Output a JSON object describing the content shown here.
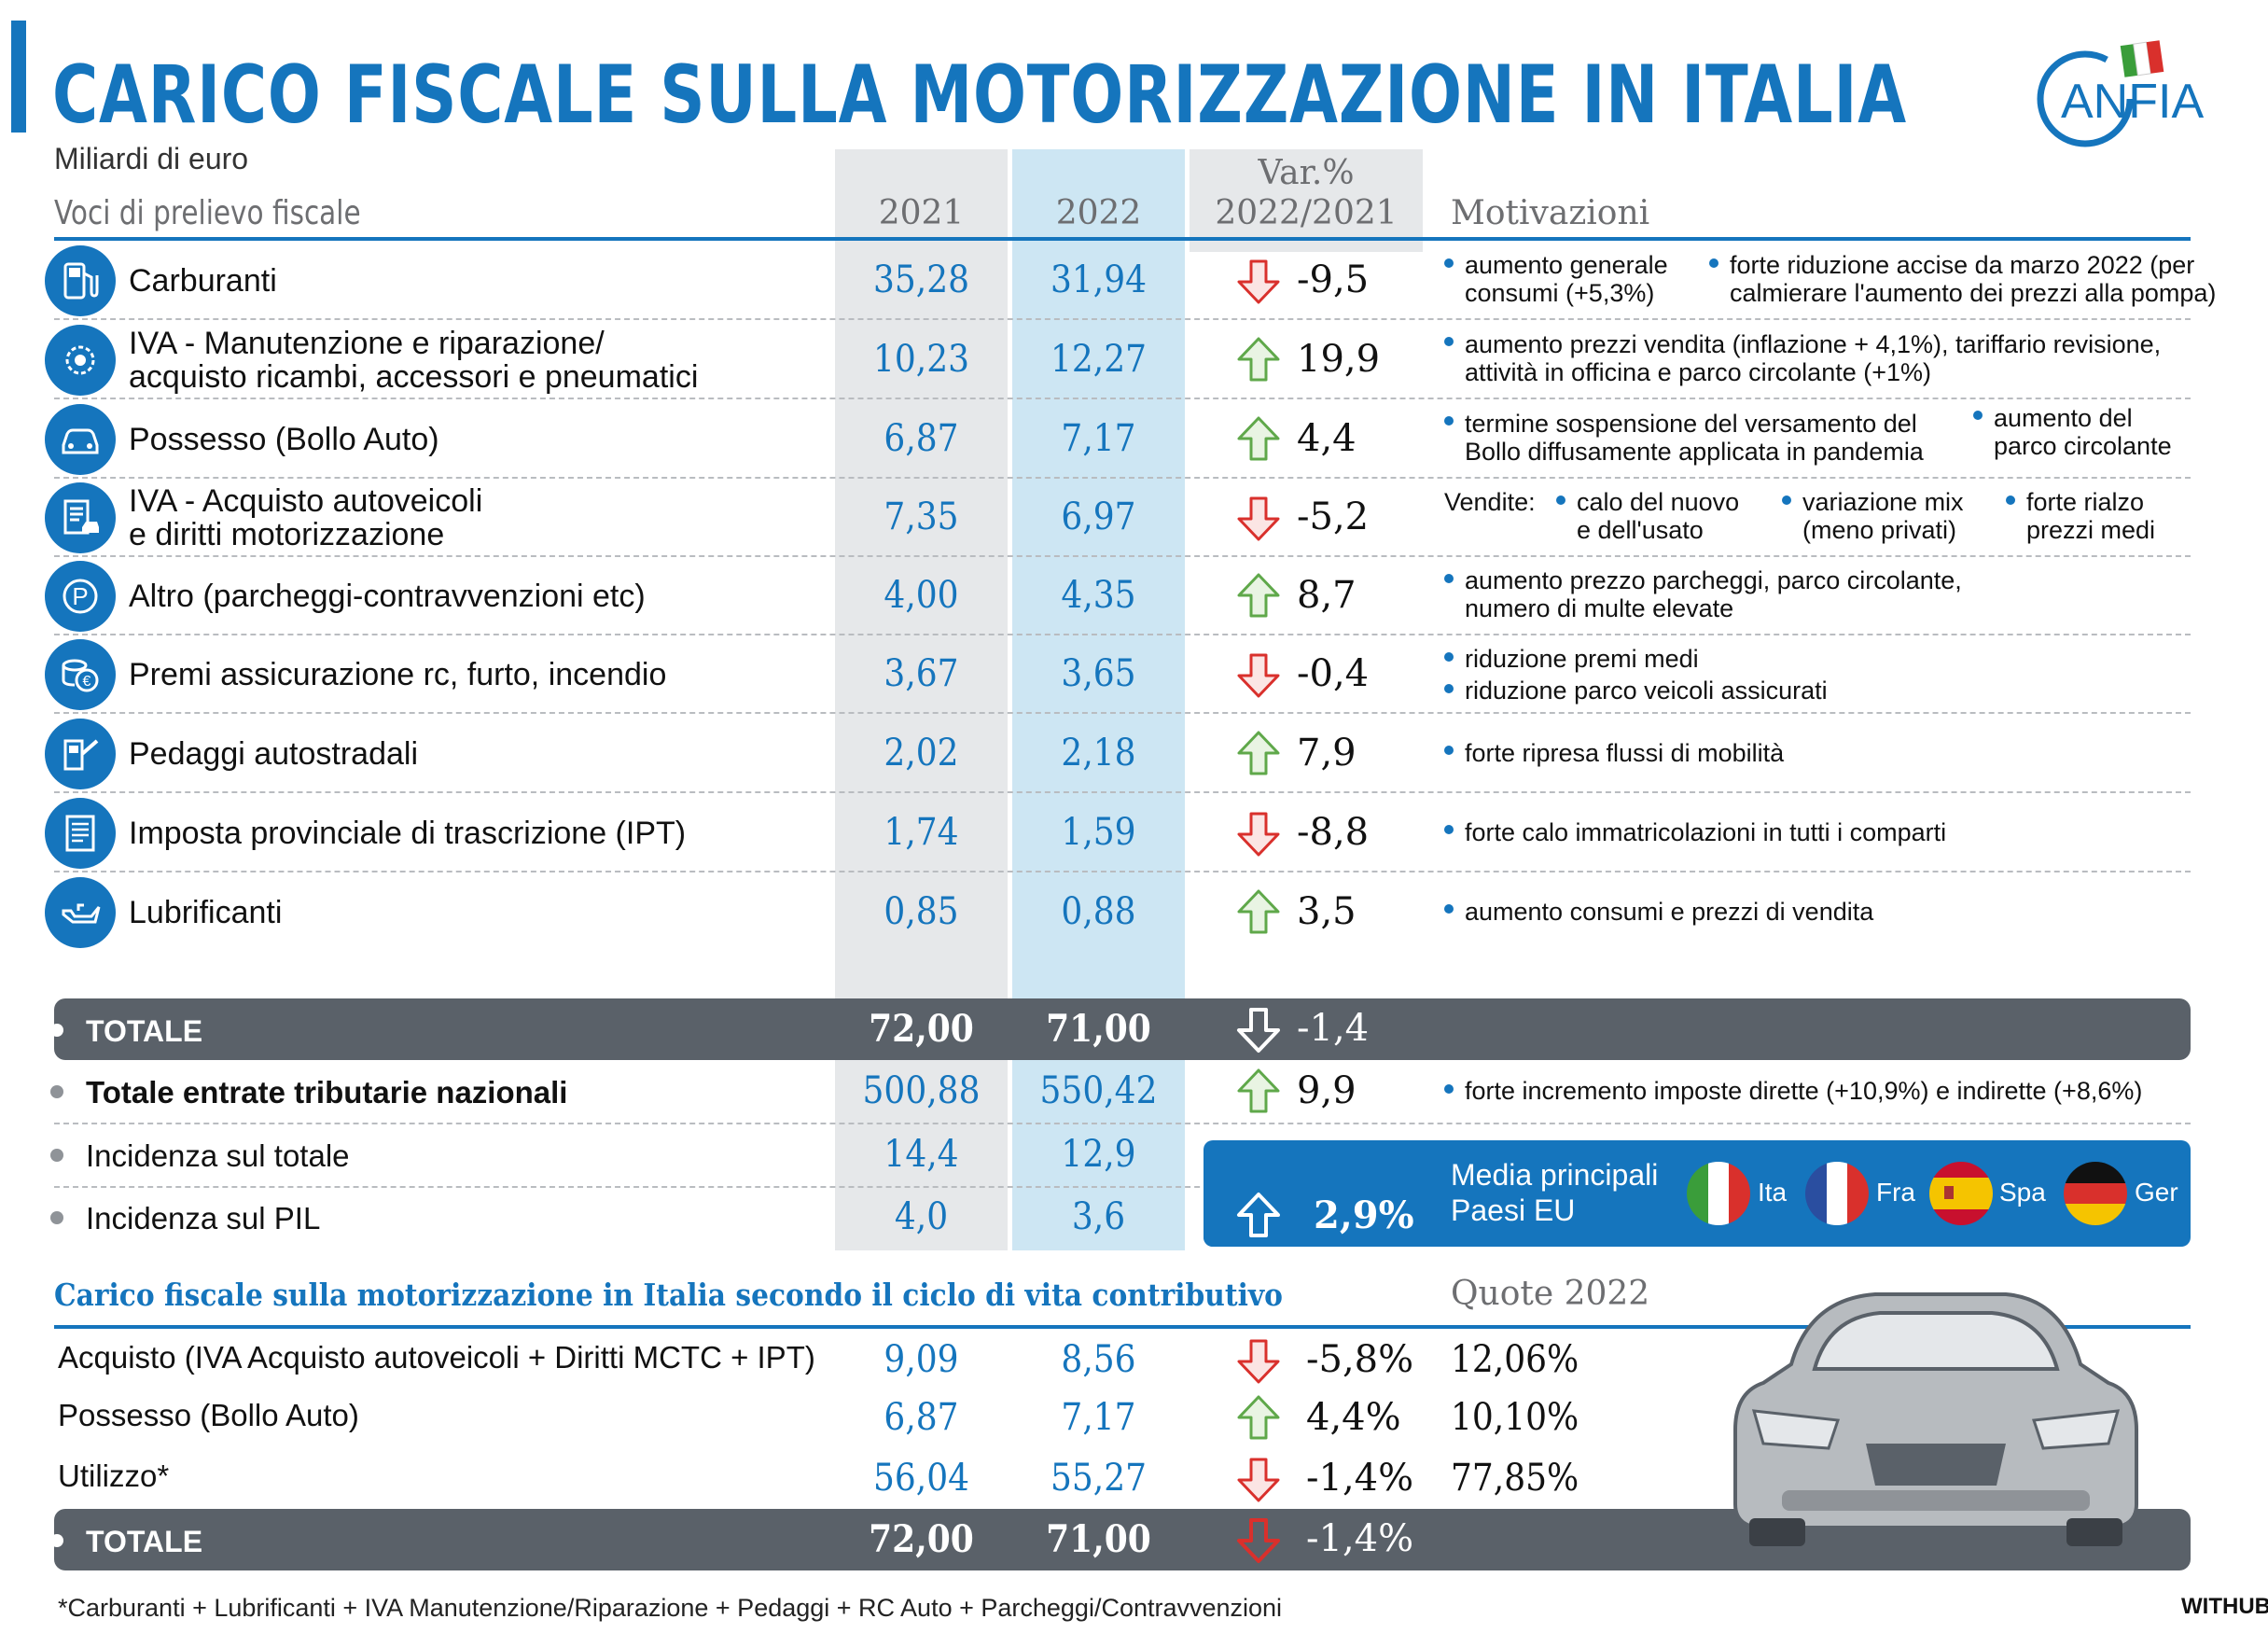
{
  "title": "CARICO FISCALE SULLA MOTORIZZAZIONE IN ITALIA",
  "logo_text": "ANFIA",
  "unit": "Miliardi di euro",
  "headers": {
    "voci": "Voci di prelievo fiscale",
    "y2021": "2021",
    "y2022": "2022",
    "var_line1": "Var.%",
    "var_line2": "2022/2021",
    "motivazioni": "Motivazioni"
  },
  "colors": {
    "accent": "#1575bd",
    "up": "#5fa84a",
    "down": "#d9302c",
    "total_bar": "#5a6169"
  },
  "chart_data": {
    "type": "table",
    "title": "CARICO FISCALE SULLA MOTORIZZAZIONE IN ITALIA",
    "columns": [
      "Voci di prelievo fiscale",
      "2021",
      "2022",
      "Var.% 2022/2021",
      "Motivazioni"
    ],
    "rows": [
      {
        "icon": "fuel-pump-icon",
        "label": "Carburanti",
        "v2021": "35,28",
        "v2022": "31,94",
        "var": "-9,5",
        "dir": "down",
        "motivazioni": [
          [
            "aumento generale",
            "consumi (+5,3%)"
          ],
          [
            "forte riduzione accise da marzo 2022 (per",
            "calmierare l'aumento dei prezzi alla pompa)"
          ]
        ]
      },
      {
        "icon": "maintenance-icon",
        "label": "IVA - Manutenzione e riparazione/",
        "label2": "acquisto ricambi, accessori e pneumatici",
        "v2021": "10,23",
        "v2022": "12,27",
        "var": "19,9",
        "dir": "up",
        "motivazioni": [
          [
            "aumento prezzi vendita (inflazione + 4,1%), tariffario revisione,",
            "attività in officina e parco circolante (+1%)"
          ]
        ]
      },
      {
        "icon": "car-icon",
        "label": "Possesso (Bollo Auto)",
        "v2021": "6,87",
        "v2022": "7,17",
        "var": "4,4",
        "dir": "up",
        "motivazioni": [
          [
            "termine sospensione del versamento del",
            "Bollo diffusamente applicata in pandemia"
          ],
          [
            "aumento del",
            "parco circolante"
          ]
        ]
      },
      {
        "icon": "vehicle-purchase-icon",
        "label": "IVA - Acquisto autoveicoli",
        "label2": "e diritti motorizzazione",
        "v2021": "7,35",
        "v2022": "6,97",
        "var": "-5,2",
        "dir": "down",
        "prefix": "Vendite:",
        "motivazioni": [
          [
            "calo del nuovo",
            "e dell'usato"
          ],
          [
            "variazione mix",
            "(meno privati)"
          ],
          [
            "forte rialzo",
            "prezzi medi"
          ]
        ]
      },
      {
        "icon": "parking-icon",
        "label": "Altro (parcheggi-contravvenzioni etc)",
        "v2021": "4,00",
        "v2022": "4,35",
        "var": "8,7",
        "dir": "up",
        "motivazioni": [
          [
            "aumento prezzo parcheggi, parco circolante,",
            "numero di multe elevate"
          ]
        ]
      },
      {
        "icon": "insurance-coins-icon",
        "label": "Premi assicurazione rc, furto, incendio",
        "v2021": "3,67",
        "v2022": "3,65",
        "var": "-0,4",
        "dir": "down",
        "motivazioni": [
          [
            "riduzione premi medi"
          ],
          [
            "riduzione parco veicoli assicurati"
          ]
        ]
      },
      {
        "icon": "toll-booth-icon",
        "label": "Pedaggi autostradali",
        "v2021": "2,02",
        "v2022": "2,18",
        "var": "7,9",
        "dir": "up",
        "motivazioni": [
          [
            "forte ripresa flussi di mobilità"
          ]
        ]
      },
      {
        "icon": "document-icon",
        "label": "Imposta provinciale di trascrizione (IPT)",
        "v2021": "1,74",
        "v2022": "1,59",
        "var": "-8,8",
        "dir": "down",
        "motivazioni": [
          [
            "forte calo immatricolazioni in tutti i comparti"
          ]
        ]
      },
      {
        "icon": "oil-can-icon",
        "label": "Lubrificanti",
        "v2021": "0,85",
        "v2022": "0,88",
        "var": "3,5",
        "dir": "up",
        "motivazioni": [
          [
            "aumento consumi e prezzi di vendita"
          ]
        ]
      }
    ],
    "totale": {
      "label": "TOTALE",
      "v2021": "72,00",
      "v2022": "71,00",
      "var": "-1,4",
      "dir": "down"
    },
    "extra_rows": [
      {
        "label": "Totale entrate tributarie nazionali",
        "v2021": "500,88",
        "v2022": "550,42",
        "var": "9,9",
        "dir": "up",
        "motivazione": "forte incremento imposte dirette (+10,9%) e indirette (+8,6%)"
      },
      {
        "label": "Incidenza sul totale",
        "v2021": "14,4",
        "v2022": "12,9"
      },
      {
        "label": "Incidenza sul PIL",
        "v2021": "4,0",
        "v2022": "3,6"
      }
    ],
    "eu_media": {
      "value": "2,9%",
      "label_line1": "Media principali",
      "label_line2": "Paesi EU",
      "countries": [
        "Ita",
        "Fra",
        "Spa",
        "Ger"
      ]
    },
    "ciclo_vita": {
      "title": "Carico fiscale sulla motorizzazione in Italia secondo il ciclo di vita contributivo",
      "quote_header": "Quote 2022",
      "rows": [
        {
          "label": "Acquisto (IVA Acquisto autoveicoli + Diritti MCTC + IPT)",
          "v2021": "9,09",
          "v2022": "8,56",
          "var": "-5,8%",
          "dir": "down",
          "quota": "12,06%"
        },
        {
          "label": "Possesso (Bollo Auto)",
          "v2021": "6,87",
          "v2022": "7,17",
          "var": "4,4%",
          "dir": "up",
          "quota": "10,10%"
        },
        {
          "label": "Utilizzo*",
          "v2021": "56,04",
          "v2022": "55,27",
          "var": "-1,4%",
          "dir": "down",
          "quota": "77,85%"
        }
      ],
      "totale": {
        "label": "TOTALE",
        "v2021": "72,00",
        "v2022": "71,00",
        "var": "-1,4%",
        "dir": "down"
      }
    }
  },
  "footnote": "*Carburanti + Lubrificanti + IVA Manutenzione/Riparazione + Pedaggi + RC Auto + Parcheggi/Contravvenzioni",
  "credit": "WITHUB"
}
